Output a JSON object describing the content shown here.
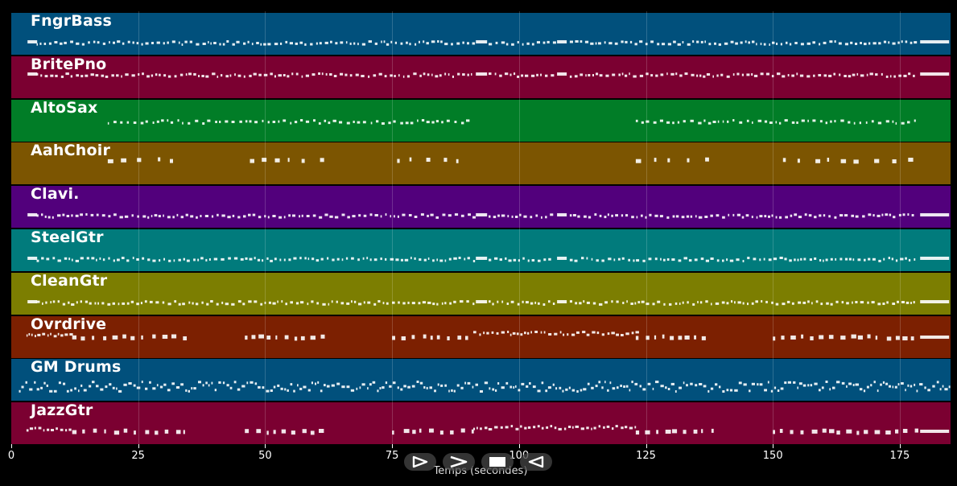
{
  "tracks": [
    {
      "name": "FngrBass",
      "color": "#01507c",
      "pattern": "dense",
      "inst": "bass"
    },
    {
      "name": "BritePno",
      "color": "#7b0031",
      "pattern": "dense",
      "inst": "piano"
    },
    {
      "name": "AltoSax",
      "color": "#017d27",
      "pattern": "sax",
      "inst": "sax"
    },
    {
      "name": "AahChoir",
      "color": "#7c5501",
      "pattern": "choir",
      "inst": "choir"
    },
    {
      "name": "Clavi.",
      "color": "#52007c",
      "pattern": "dense",
      "inst": "clavi"
    },
    {
      "name": "SteelGtr",
      "color": "#017b7c",
      "pattern": "dense",
      "inst": "steel"
    },
    {
      "name": "CleanGtr",
      "color": "#7c7e01",
      "pattern": "dense",
      "inst": "clean"
    },
    {
      "name": "Ovrdrive",
      "color": "#7c2001",
      "pattern": "overdrive",
      "inst": "overdrive"
    },
    {
      "name": "GM Drums",
      "color": "#01507c",
      "pattern": "drums",
      "inst": "drums"
    },
    {
      "name": "JazzGtr",
      "color": "#7b0031",
      "pattern": "overdrive",
      "inst": "jazz"
    }
  ],
  "axis": {
    "xlabel": "Temps (secondes)",
    "ticks": [
      0,
      25,
      50,
      75,
      100,
      125,
      150,
      175
    ],
    "xlim": [
      0,
      185
    ]
  },
  "controls": [
    {
      "id": "play",
      "icon": "play-icon"
    },
    {
      "id": "forward",
      "icon": "forward-icon"
    },
    {
      "id": "stop",
      "icon": "stop-icon"
    },
    {
      "id": "rewind",
      "icon": "rewind-icon"
    }
  ]
}
